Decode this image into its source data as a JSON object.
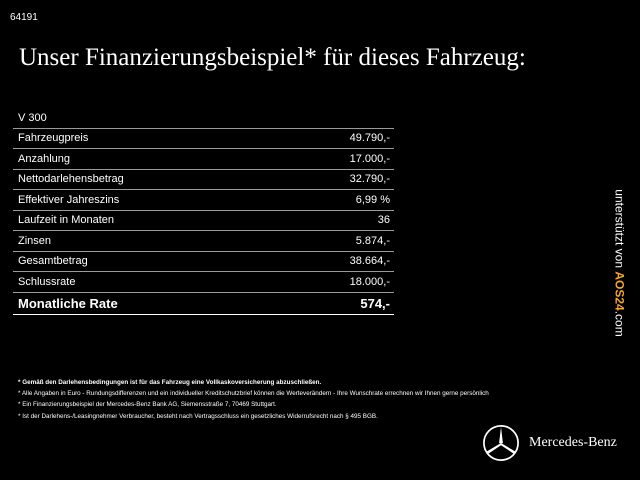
{
  "code": "64191",
  "title": "Unser Finanzierungsbeispiel* für dieses Fahrzeug:",
  "model": "V 300",
  "rows": [
    {
      "label": "Fahrzeugpreis",
      "value": "49.790,-"
    },
    {
      "label": "Anzahlung",
      "value": "17.000,-"
    },
    {
      "label": "Nettodarlehensbetrag",
      "value": "32.790,-"
    },
    {
      "label": "Effektiver Jahreszins",
      "value": "6,99 %"
    },
    {
      "label": "Laufzeit in Monaten",
      "value": "36"
    },
    {
      "label": "Zinsen",
      "value": "5.874,-"
    },
    {
      "label": "Gesamtbetrag",
      "value": "38.664,-"
    },
    {
      "label": "Schlussrate",
      "value": "18.000,-"
    }
  ],
  "total": {
    "label": "Monatliche Rate",
    "value": "574,-"
  },
  "vertical": {
    "prefix": "unterstützt von ",
    "brand": "AOS24",
    "suffix": ".com"
  },
  "footnotes": [
    "* Gemäß den Darlehensbedingungen ist für das Fahrzeug eine Vollkaskoversicherung abzuschließen.",
    "* Alle Angaben in Euro - Rundungsdifferenzen und ein individueller Kreditschutzbrief können die Werteverändern - Ihre Wunschrate errechnen wir Ihnen gerne persönlich",
    "* Ein Finanzierungsbeispiel der Mercedes-Benz Bank AG, Siemensstraße 7, 70469 Stuttgart.",
    "* Ist der Darlehens-/Leasingnehmer Verbraucher, besteht nach Vertragsschluss ein gesetzliches Widerrufsrecht nach § 495 BGB."
  ],
  "brand_name": "Mercedes-Benz",
  "logo_icon": "mercedes-star-icon"
}
